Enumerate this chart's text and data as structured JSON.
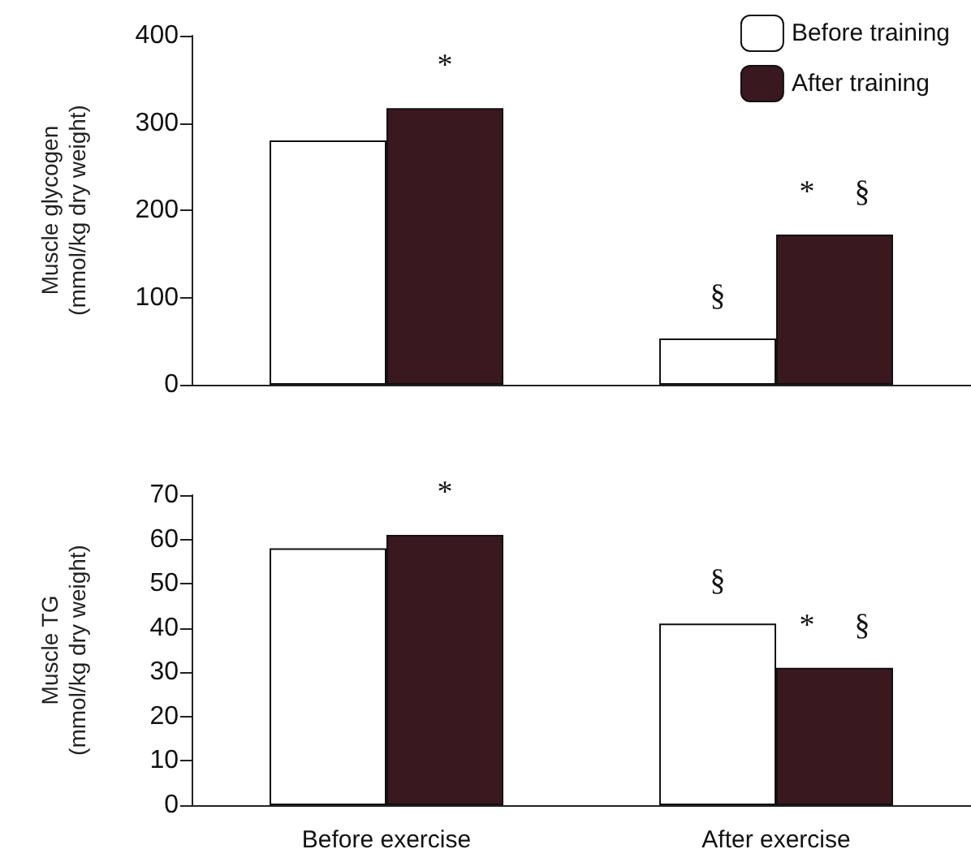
{
  "chart_data": [
    {
      "type": "bar",
      "ylabel": "Muscle glycogen\n(mmol/kg dry weight)",
      "categories": [
        "Before exercise",
        "After exercise"
      ],
      "series": [
        {
          "name": "Before training",
          "color": "#ffffff",
          "values": [
            280,
            53
          ]
        },
        {
          "name": "After training",
          "color": "#3a1820",
          "values": [
            317,
            172
          ]
        }
      ],
      "ylim": [
        0,
        400
      ],
      "yticks": [
        0,
        100,
        200,
        300,
        400
      ],
      "grid": false,
      "legend": "top right",
      "tick_labels": "y",
      "annotations": [
        {
          "text": "*",
          "x": "Before exercise",
          "y": 317
        },
        {
          "text": "§",
          "x": "After exercise",
          "y": 53
        },
        {
          "text": "*",
          "x": "After exercise",
          "y": 172
        },
        {
          "text": "§",
          "x": "After exercise",
          "y": 172
        }
      ]
    },
    {
      "type": "bar",
      "ylabel": "Muscle TG\n(mmol/kg dry weight)",
      "categories": [
        "Before exercise",
        "After exercise"
      ],
      "series": [
        {
          "color": "#ffffff",
          "values": [
            58,
            41
          ]
        },
        {
          "color": "#3a1820",
          "values": [
            61,
            31
          ]
        }
      ],
      "ylim": [
        0,
        70
      ],
      "yticks": [
        0,
        10,
        20,
        30,
        40,
        50,
        60,
        70
      ],
      "grid": false,
      "annotations": [
        {
          "text": "*",
          "x": "Before exercise",
          "y": 61
        },
        {
          "text": "§",
          "x": "After exercise",
          "y": 41
        },
        {
          "text": "*",
          "x": "After exercise",
          "y": 31
        },
        {
          "text": "§",
          "x": "After exercise",
          "y": 31
        }
      ]
    }
  ]
}
